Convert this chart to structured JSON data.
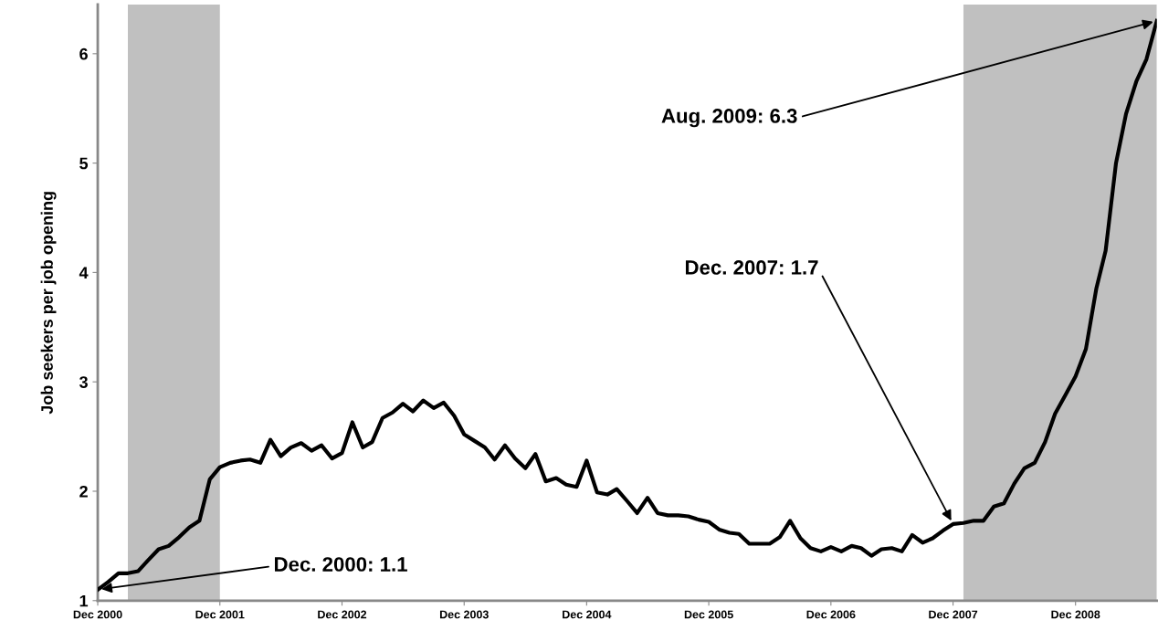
{
  "chart_data": {
    "type": "line",
    "ylabel": "Job seekers per job opening",
    "x": [
      "2000-12",
      "2001-01",
      "2001-02",
      "2001-03",
      "2001-04",
      "2001-05",
      "2001-06",
      "2001-07",
      "2001-08",
      "2001-09",
      "2001-10",
      "2001-11",
      "2001-12",
      "2002-01",
      "2002-02",
      "2002-03",
      "2002-04",
      "2002-05",
      "2002-06",
      "2002-07",
      "2002-08",
      "2002-09",
      "2002-10",
      "2002-11",
      "2002-12",
      "2003-01",
      "2003-02",
      "2003-03",
      "2003-04",
      "2003-05",
      "2003-06",
      "2003-07",
      "2003-08",
      "2003-09",
      "2003-10",
      "2003-11",
      "2003-12",
      "2004-01",
      "2004-02",
      "2004-03",
      "2004-04",
      "2004-05",
      "2004-06",
      "2004-07",
      "2004-08",
      "2004-09",
      "2004-10",
      "2004-11",
      "2004-12",
      "2005-01",
      "2005-02",
      "2005-03",
      "2005-04",
      "2005-05",
      "2005-06",
      "2005-07",
      "2005-08",
      "2005-09",
      "2005-10",
      "2005-11",
      "2005-12",
      "2006-01",
      "2006-02",
      "2006-03",
      "2006-04",
      "2006-05",
      "2006-06",
      "2006-07",
      "2006-08",
      "2006-09",
      "2006-10",
      "2006-11",
      "2006-12",
      "2007-01",
      "2007-02",
      "2007-03",
      "2007-04",
      "2007-05",
      "2007-06",
      "2007-07",
      "2007-08",
      "2007-09",
      "2007-10",
      "2007-11",
      "2007-12",
      "2008-01",
      "2008-02",
      "2008-03",
      "2008-04",
      "2008-05",
      "2008-06",
      "2008-07",
      "2008-08",
      "2008-09",
      "2008-10",
      "2008-11",
      "2008-12",
      "2009-01",
      "2009-02",
      "2009-03",
      "2009-04",
      "2009-05",
      "2009-06",
      "2009-07",
      "2009-08"
    ],
    "series": [
      {
        "color": "#000000",
        "values": [
          1.1,
          1.17,
          1.25,
          1.25,
          1.27,
          1.37,
          1.47,
          1.5,
          1.58,
          1.67,
          1.73,
          2.11,
          2.22,
          2.26,
          2.28,
          2.29,
          2.26,
          2.47,
          2.32,
          2.4,
          2.44,
          2.37,
          2.42,
          2.3,
          2.35,
          2.63,
          2.4,
          2.45,
          2.67,
          2.72,
          2.8,
          2.73,
          2.83,
          2.76,
          2.81,
          2.69,
          2.52,
          2.46,
          2.4,
          2.29,
          2.42,
          2.3,
          2.21,
          2.34,
          2.09,
          2.12,
          2.06,
          2.04,
          2.28,
          1.99,
          1.97,
          2.02,
          1.91,
          1.8,
          1.94,
          1.8,
          1.78,
          1.78,
          1.77,
          1.74,
          1.72,
          1.65,
          1.62,
          1.61,
          1.52,
          1.52,
          1.52,
          1.58,
          1.73,
          1.57,
          1.48,
          1.45,
          1.49,
          1.45,
          1.5,
          1.48,
          1.41,
          1.47,
          1.48,
          1.45,
          1.6,
          1.53,
          1.57,
          1.64,
          1.7,
          1.71,
          1.73,
          1.73,
          1.86,
          1.89,
          2.07,
          2.21,
          2.26,
          2.45,
          2.71,
          2.88,
          3.05,
          3.3,
          3.85,
          4.2,
          5.0,
          5.45,
          5.75,
          5.95,
          6.3
        ]
      }
    ],
    "xlim": [
      "2000-12",
      "2009-08"
    ],
    "xticks": [
      {
        "value": "2000-12",
        "label": "Dec 2000"
      },
      {
        "value": "2001-12",
        "label": "Dec 2001"
      },
      {
        "value": "2002-12",
        "label": "Dec 2002"
      },
      {
        "value": "2003-12",
        "label": "Dec 2003"
      },
      {
        "value": "2004-12",
        "label": "Dec 2004"
      },
      {
        "value": "2005-12",
        "label": "Dec 2005"
      },
      {
        "value": "2006-12",
        "label": "Dec 2006"
      },
      {
        "value": "2007-12",
        "label": "Dec 2007"
      },
      {
        "value": "2008-12",
        "label": "Dec 2008"
      }
    ],
    "ylim": [
      1,
      6.45
    ],
    "yticks": [
      1,
      2,
      3,
      4,
      5,
      6
    ],
    "bands": [
      {
        "axis": "x",
        "from": "2001-03",
        "to": "2001-12",
        "color": "#c0c0c0"
      },
      {
        "axis": "x",
        "from": "2008-01",
        "to": "2009-08",
        "color": "#c0c0c0"
      }
    ],
    "annotations": [
      {
        "text": "Dec. 2000: 1.1",
        "x": "2000-12",
        "y": 1.1
      },
      {
        "text": "Dec. 2007: 1.7",
        "x": "2007-12",
        "y": 1.7
      },
      {
        "text": "Aug. 2009: 6.3",
        "x": "2009-08",
        "y": 6.3
      }
    ],
    "grid": false,
    "marker": "none",
    "line_style": "solid"
  }
}
